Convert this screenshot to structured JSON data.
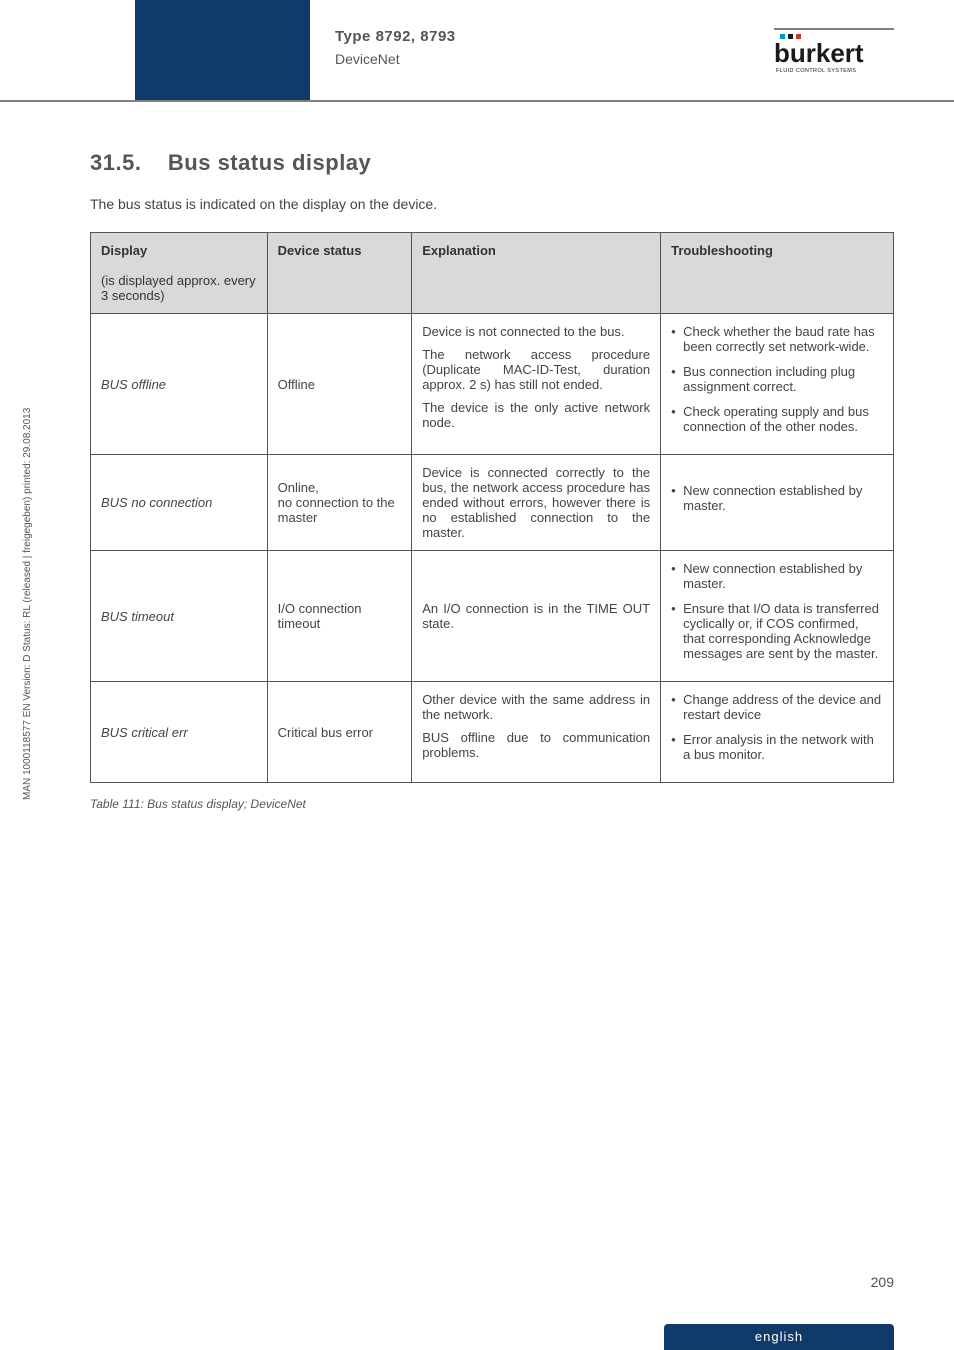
{
  "header": {
    "type_line": "Type 8792, 8793",
    "sub_line": "DeviceNet",
    "logo_text": "burkert",
    "logo_sub": "FLUID CONTROL SYSTEMS",
    "logo_colors": {
      "blue": "#0099cc",
      "dark": "#1a1a1a",
      "red": "#cc3333"
    }
  },
  "section": {
    "number": "31.5.",
    "title": "Bus status display",
    "intro": "The bus status is indicated on the display on the device."
  },
  "table": {
    "headers": {
      "c1a": "Display",
      "c1b": "(is displayed approx. every 3 seconds)",
      "c2": "Device status",
      "c3": "Explanation",
      "c4": "Troubleshooting"
    },
    "rows": [
      {
        "c1": "BUS offline",
        "c2": "Offline",
        "c3": [
          "Device is not connected to the bus.",
          "The network access procedure (Duplicate MAC-ID-Test, duration approx. 2 s) has still not ended.",
          "The device is the only active network node."
        ],
        "c4": [
          "Check whether the baud rate has been correctly set network-wide.",
          "Bus connection including plug assignment correct.",
          "Check operating supply and bus connection of the other nodes."
        ]
      },
      {
        "c1": "BUS no connection",
        "c2": "Online,\nno connection to the master",
        "c3": [
          "Device is connected correctly to the bus, the network access procedure has ended without errors, however there is no established connection to the master."
        ],
        "c4": [
          "New connection established by master."
        ]
      },
      {
        "c1": "BUS timeout",
        "c2": "I/O connection timeout",
        "c3": [
          "An I/O connection is in the TIME OUT state."
        ],
        "c4": [
          "New connection established by master.",
          "Ensure that I/O data is transferred cyclically or, if COS confirmed, that corresponding Acknowledge messages are sent by the master."
        ]
      },
      {
        "c1": "BUS critical err",
        "c2": "Critical bus error",
        "c3": [
          "Other device with the same address in the network.",
          "BUS offline due to communication problems."
        ],
        "c4": [
          "Change address of the device and restart device",
          "Error analysis in the network with a bus monitor."
        ]
      }
    ]
  },
  "caption": "Table 111:     Bus status display; DeviceNet",
  "side": "MAN 1000118577 EN Version: D Status: RL (released | freigegeben) printed: 29.08.2013",
  "page": "209",
  "footer": "english"
}
